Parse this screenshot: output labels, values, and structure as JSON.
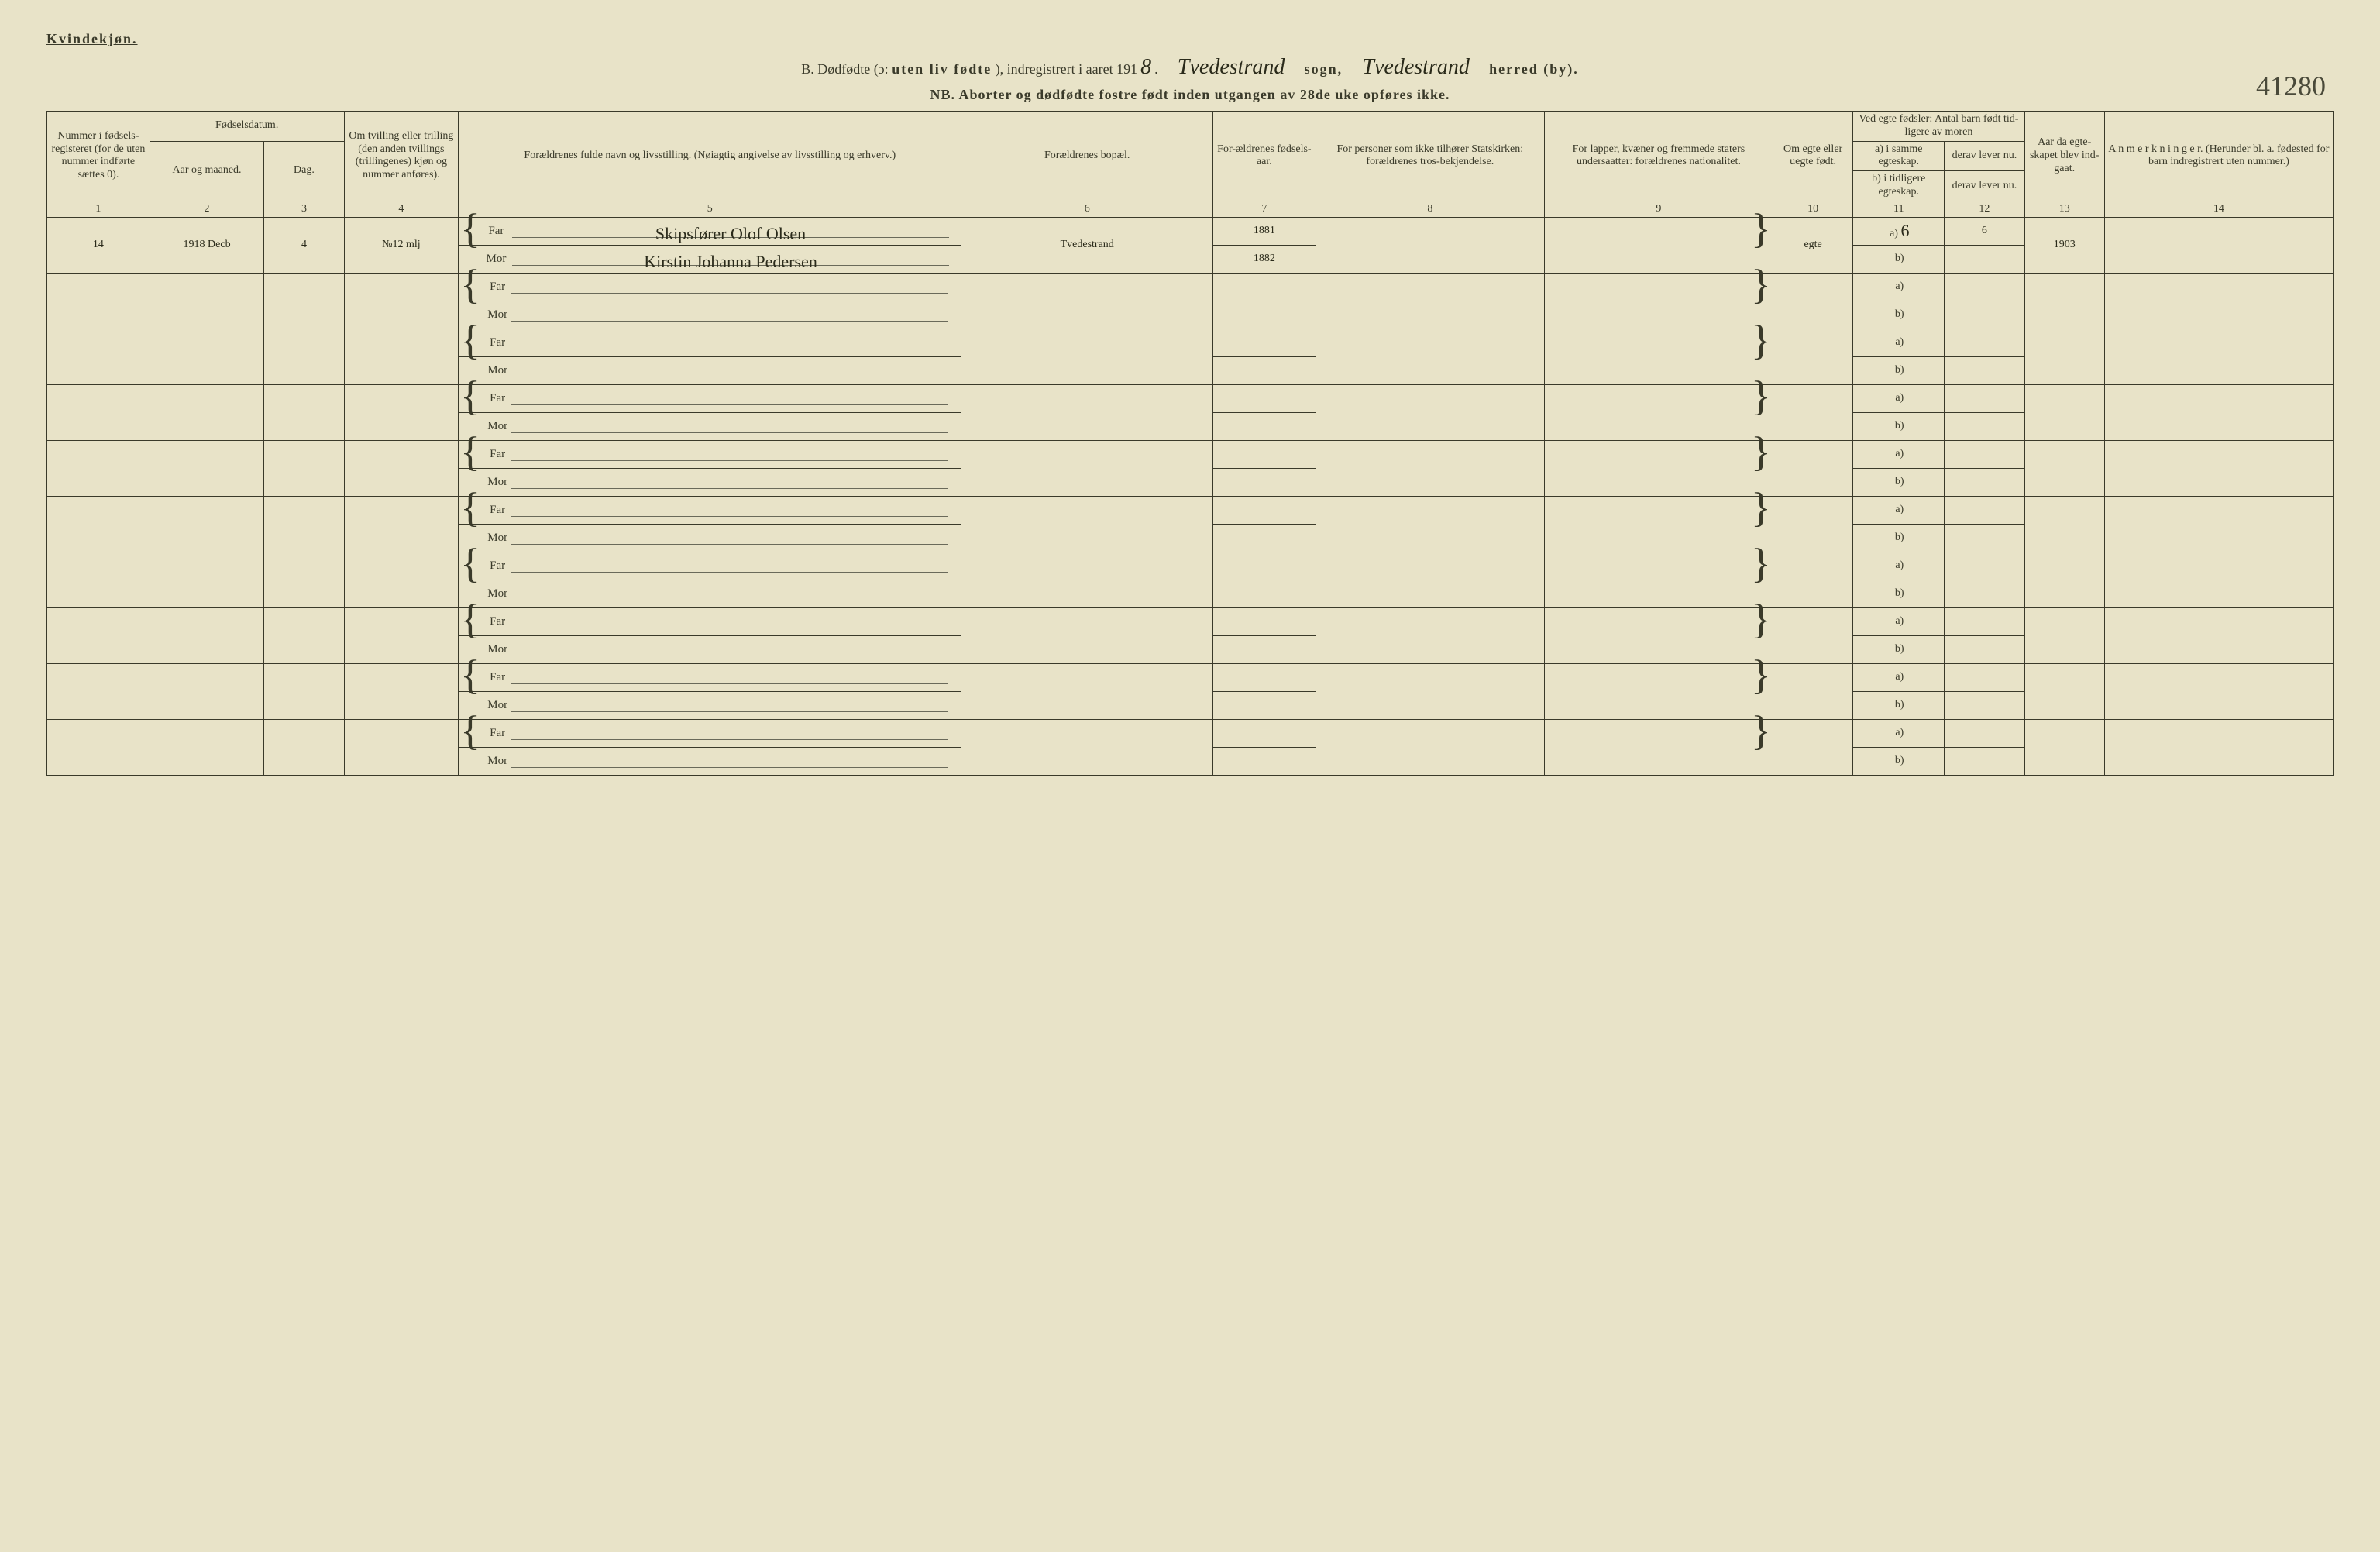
{
  "labels": {
    "gender": "Kvindekjøn.",
    "title_prefix": "B. Dødfødte (ɔ:",
    "title_bold": "uten liv fødte",
    "title_mid": "), indregistrert i aaret 191",
    "year_suffix_hand": "8",
    "sogn_hand": "Tvedestrand",
    "sogn_label": "sogn,",
    "herred_hand": "Tvedestrand",
    "herred_label": "herred (by).",
    "nb": "NB.  Aborter og dødfødte fostre født inden utgangen av 28de uke opføres ikke.",
    "page_number": "41280"
  },
  "headers": {
    "c1": "Nummer i fødsels-registeret (for de uten nummer indførte sættes 0).",
    "c2_top": "Fødselsdatum.",
    "c2": "Aar og maaned.",
    "c3": "Dag.",
    "c4": "Om tvilling eller trilling (den anden tvillings (trillingenes) kjøn og nummer anføres).",
    "c5": "Forældrenes fulde navn og livsstilling. (Nøiagtig angivelse av livsstilling og erhverv.)",
    "c6": "Forældrenes bopæl.",
    "c7": "For-ældrenes fødsels-aar.",
    "c8": "For personer som ikke tilhører Statskirken: forældrenes tros-bekjendelse.",
    "c9": "For lapper, kvæner og fremmede staters undersaatter: forældrenes nationalitet.",
    "c10": "Om egte eller uegte født.",
    "c11_top": "Ved egte fødsler: Antal barn født tid-ligere av moren",
    "c11a": "a) i samme egteskap.",
    "c11b": "b) i tidligere egteskap.",
    "c12a": "derav lever nu.",
    "c12b": "derav lever nu.",
    "c13": "Aar da egte-skapet blev ind-gaat.",
    "c14": "A n m e r k n i n g e r. (Herunder bl. a. fødested for barn indregistrert uten nummer.)"
  },
  "colnums": [
    "1",
    "2",
    "3",
    "4",
    "5",
    "6",
    "7",
    "8",
    "9",
    "10",
    "11",
    "12",
    "13",
    "14"
  ],
  "fm": {
    "far": "Far",
    "mor": "Mor",
    "a": "a)",
    "b": "b)"
  },
  "entry": {
    "num": "14",
    "year_month": "1918 Decb",
    "day": "4",
    "twin": "№12 mlj",
    "far_name": "Skipsfører Olof Olsen",
    "mor_name": "Kirstin Johanna Pedersen",
    "bopael": "Tvedestrand",
    "far_year": "1881",
    "mor_year": "1882",
    "egte": "egte",
    "c11a": "6",
    "c12a": "6",
    "c13": "1903"
  },
  "blank_rows": 9
}
